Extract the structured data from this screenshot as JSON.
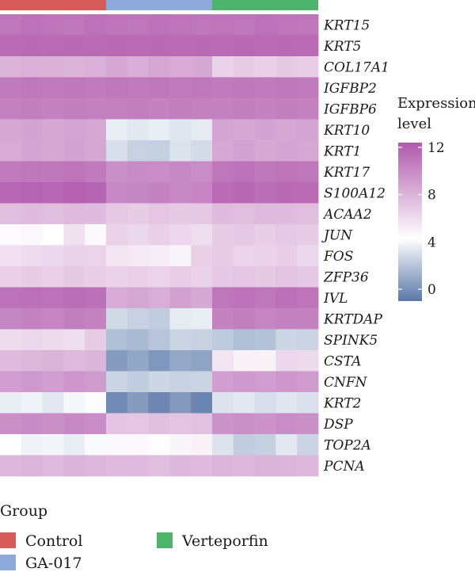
{
  "chart_data": {
    "type": "heatmap",
    "genes": [
      "KRT15",
      "KRT5",
      "COL17A1",
      "IGFBP2",
      "IGFBP6",
      "KRT10",
      "KRT1",
      "KRT17",
      "S100A12",
      "ACAA2",
      "JUN",
      "FOS",
      "ZFP36",
      "IVL",
      "KRTDAP",
      "SPINK5",
      "CSTA",
      "CNFN",
      "KRT2",
      "DSP",
      "TOP2A",
      "PCNA"
    ],
    "groups": [
      {
        "name": "Control",
        "color": "#d65c5c",
        "samples": 5
      },
      {
        "name": "GA-017",
        "color": "#8eaadb",
        "samples": 5
      },
      {
        "name": "Verteporfin",
        "color": "#4db36d",
        "samples": 5
      }
    ],
    "values": [
      [
        11,
        11.2,
        11.1,
        11,
        11.2,
        11.1,
        11,
        11.2,
        11.1,
        11,
        11.1,
        11,
        11.2,
        11.1,
        11
      ],
      [
        11.5,
        11.6,
        11.5,
        11.6,
        11.5,
        11.6,
        11.5,
        11.6,
        11.5,
        11.6,
        11.5,
        11.6,
        11.5,
        11.6,
        11.5
      ],
      [
        8,
        8.2,
        8.1,
        8,
        8.2,
        8.5,
        8.3,
        8.6,
        8.4,
        8.5,
        6.5,
        6.8,
        6.6,
        6.9,
        6.7
      ],
      [
        10.8,
        10.9,
        10.8,
        10.9,
        10.8,
        10.9,
        10.8,
        10.9,
        10.8,
        10.9,
        10.8,
        10.9,
        10.8,
        10.9,
        10.8
      ],
      [
        10.5,
        10.6,
        10.4,
        10.6,
        10.5,
        10.5,
        10.6,
        10.4,
        10.6,
        10.5,
        10.5,
        10.6,
        10.4,
        10.6,
        10.5
      ],
      [
        8.6,
        8.8,
        8.5,
        8.7,
        8.6,
        3.6,
        3.4,
        3.6,
        3.3,
        3.5,
        8.7,
        8.5,
        8.8,
        8.6,
        8.7
      ],
      [
        8.4,
        8.7,
        8.5,
        8.8,
        8.6,
        3,
        2.5,
        2.4,
        3.2,
        2.9,
        8.6,
        8.8,
        8.5,
        8.7,
        8.6
      ],
      [
        10.8,
        11,
        10.9,
        11.1,
        10.8,
        9.8,
        10,
        9.9,
        10.1,
        9.9,
        11,
        11.2,
        10.9,
        11.1,
        11
      ],
      [
        11.8,
        11.9,
        11.8,
        12,
        11.9,
        10.1,
        10.2,
        10.4,
        10.1,
        10.3,
        11.5,
        11.7,
        11.4,
        11.6,
        11.5
      ],
      [
        7.5,
        7.6,
        7.5,
        7.7,
        7.6,
        7,
        6.8,
        7.1,
        6.9,
        7,
        7.6,
        7.5,
        7.7,
        7.6,
        7.5
      ],
      [
        4.5,
        4.7,
        4.3,
        5.8,
        4.6,
        6.5,
        6.2,
        6.6,
        6.3,
        5.9,
        6.8,
        7,
        6.7,
        7,
        6.8
      ],
      [
        5.8,
        6,
        6.2,
        6.5,
        6.4,
        5.6,
        5.4,
        5.2,
        4.8,
        6.6,
        6.8,
        6.4,
        6.5,
        6.7,
        6.2
      ],
      [
        6.6,
        6.8,
        6.6,
        6.9,
        6.7,
        6.5,
        6.6,
        6.4,
        6.7,
        6.5,
        7,
        7.1,
        6.9,
        7.2,
        7
      ],
      [
        11.2,
        11.3,
        11.2,
        11.4,
        11.3,
        8.4,
        8.6,
        8.3,
        8.9,
        8.5,
        11,
        11.2,
        11,
        11.3,
        11.1
      ],
      [
        10.2,
        10.5,
        10.3,
        10.6,
        10.4,
        2.8,
        2.5,
        2.3,
        3.5,
        3.6,
        10.4,
        10.6,
        10.3,
        10.5,
        10.4
      ],
      [
        6,
        6.2,
        6.1,
        5.9,
        6.8,
        1.8,
        1.6,
        2,
        2.6,
        2.5,
        2.2,
        1.8,
        1.9,
        2.7,
        2.6
      ],
      [
        7.6,
        7.8,
        8,
        7.7,
        7.9,
        0.4,
        0.8,
        0.2,
        0.9,
        0.7,
        5.6,
        5,
        4.9,
        6.3,
        6.1
      ],
      [
        9.1,
        9.3,
        9,
        9.4,
        9.2,
        2.6,
        2.3,
        2.7,
        2.5,
        2.6,
        9,
        9.3,
        9.1,
        9.4,
        9.2
      ],
      [
        3.6,
        3.8,
        3.4,
        4,
        4.2,
        -0.3,
        0.4,
        -0.4,
        0.3,
        -0.5,
        3.2,
        3.4,
        3,
        3.3,
        3.1
      ],
      [
        9.8,
        10,
        9.8,
        10.1,
        9.9,
        7.2,
        7.1,
        7.4,
        7.2,
        7.3,
        9.6,
        9.8,
        9.6,
        9.9,
        9.7
      ],
      [
        4.3,
        3.8,
        3.9,
        3.6,
        4.1,
        4.6,
        4.7,
        4.4,
        4.8,
        4.9,
        3.2,
        2.3,
        2.4,
        3.4,
        2.6
      ],
      [
        7.8,
        7.9,
        7.7,
        8,
        7.8,
        7.6,
        7.7,
        7.5,
        7.8,
        7.7,
        7.9,
        7.8,
        8,
        7.9,
        7.8
      ]
    ],
    "colorbar": {
      "title_lines": [
        "Expression",
        "level"
      ],
      "ticks": [
        0,
        4,
        8,
        12
      ],
      "range": [
        -1,
        12.4
      ],
      "stops": [
        {
          "v": -1,
          "color": "#5a78a8"
        },
        {
          "v": 4.3,
          "color": "#ffffff"
        },
        {
          "v": 12.4,
          "color": "#b05aac"
        }
      ]
    },
    "legend": {
      "title": "Group",
      "items": [
        "Control",
        "GA-017",
        "Verteporfin"
      ]
    }
  }
}
